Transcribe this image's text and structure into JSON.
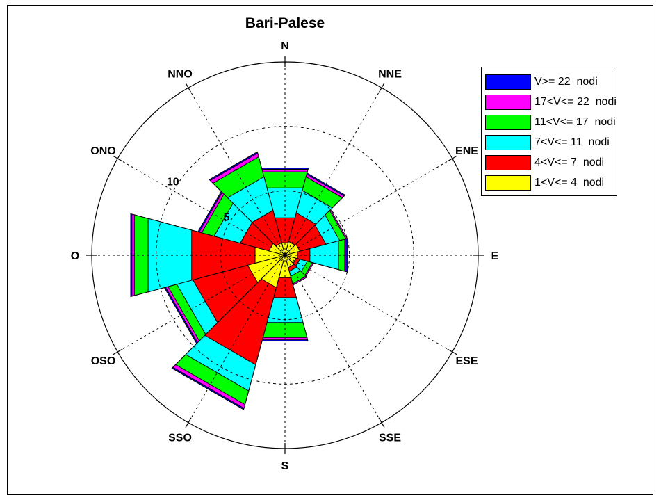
{
  "chart_data": {
    "type": "wind-rose",
    "title": "Bari-Palese",
    "directions": [
      "N",
      "NNE",
      "ENE",
      "E",
      "ESE",
      "SSE",
      "S",
      "SSO",
      "OSO",
      "O",
      "ONO",
      "NNO"
    ],
    "radial_ticks": [
      5,
      10
    ],
    "radial_max": 15,
    "series": [
      {
        "name": "1<V<= 4  nodi",
        "color": "#ffff00",
        "cumulative": [
          1.0,
          1.1,
          1.2,
          1.0,
          0.9,
          1.0,
          1.8,
          2.6,
          3.0,
          2.4,
          1.3,
          1.0
        ]
      },
      {
        "name": "4<V<= 7  nodi",
        "color": "#ff0000",
        "cumulative": [
          3.0,
          3.4,
          3.3,
          2.0,
          1.2,
          1.3,
          3.4,
          8.8,
          7.4,
          7.5,
          3.6,
          3.6
        ]
      },
      {
        "name": "7<V<= 11  nodi",
        "color": "#00ffff",
        "cumulative": [
          5.4,
          5.2,
          4.4,
          4.3,
          1.8,
          1.7,
          5.4,
          10.9,
          8.7,
          11.0,
          5.7,
          6.3
        ]
      },
      {
        "name": "11<V<= 17  nodi",
        "color": "#00ff00",
        "cumulative": [
          6.7,
          6.3,
          4.9,
          4.8,
          2.2,
          2.3,
          6.6,
          12.0,
          9.4,
          12.1,
          6.7,
          7.9
        ]
      },
      {
        "name": "17<V<= 22  nodi",
        "color": "#ff00ff",
        "cumulative": [
          6.9,
          6.5,
          5.0,
          4.9,
          2.3,
          2.4,
          6.8,
          12.3,
          9.6,
          12.3,
          6.9,
          8.2
        ]
      },
      {
        "name": "V>= 22  nodi",
        "color": "#0000ff",
        "cumulative": [
          7.0,
          6.6,
          5.0,
          5.0,
          2.3,
          2.4,
          6.9,
          12.4,
          9.7,
          12.4,
          7.0,
          8.3
        ]
      }
    ],
    "legend": [
      {
        "label": "V>= 22  nodi",
        "color": "#0000ff"
      },
      {
        "label": "17<V<= 22  nodi",
        "color": "#ff00ff"
      },
      {
        "label": "11<V<= 17  nodi",
        "color": "#00ff00"
      },
      {
        "label": "7<V<= 11  nodi",
        "color": "#00ffff"
      },
      {
        "label": "4<V<= 7  nodi",
        "color": "#ff0000"
      },
      {
        "label": "1<V<= 4  nodi",
        "color": "#ffff00"
      }
    ],
    "legend_position": "top-right",
    "grid": true
  }
}
